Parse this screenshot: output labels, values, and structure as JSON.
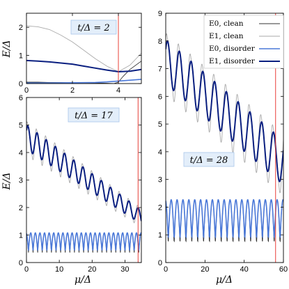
{
  "chart_data": [
    {
      "panel": "top-left",
      "type": "line",
      "annotation": "t/Δ = 2",
      "ylabel": "E/Δ",
      "xlim": [
        0,
        5
      ],
      "ylim": [
        0,
        2.5
      ],
      "xticks": [
        "0",
        "2",
        "4"
      ],
      "yticks": [
        "0",
        "1",
        "2"
      ],
      "vline_x": 4,
      "series": [
        {
          "name": "E0, clean",
          "x": [
            0,
            0.5,
            1,
            1.5,
            2,
            2.5,
            3,
            3.5,
            3.8,
            4,
            4.2,
            4.5,
            5
          ],
          "values": [
            0.05,
            0.05,
            0.04,
            0.04,
            0.03,
            0.03,
            0.02,
            0.01,
            0.0,
            0.05,
            0.25,
            0.5,
            0.8
          ]
        },
        {
          "name": "E1, clean",
          "x": [
            0,
            0.5,
            1,
            1.5,
            2,
            2.5,
            3,
            3.5,
            4,
            4.5,
            5
          ],
          "values": [
            2.05,
            2.02,
            1.92,
            1.72,
            1.48,
            1.18,
            0.88,
            0.62,
            0.42,
            0.65,
            1.08
          ]
        },
        {
          "name": "E0, disorder",
          "x": [
            0,
            1,
            2,
            3,
            3.5,
            4,
            4.5,
            5
          ],
          "values": [
            0.02,
            0.02,
            0.03,
            0.04,
            0.06,
            0.09,
            0.12,
            0.15
          ]
        },
        {
          "name": "E1, disorder",
          "x": [
            0,
            0.5,
            1,
            1.5,
            2,
            2.5,
            3,
            3.5,
            4,
            4.5,
            5
          ],
          "values": [
            0.82,
            0.8,
            0.77,
            0.73,
            0.69,
            0.62,
            0.55,
            0.48,
            0.42,
            0.44,
            0.5
          ]
        }
      ]
    },
    {
      "panel": "bottom-left",
      "type": "line",
      "annotation": "t/Δ = 17",
      "xlabel": "μ/Δ",
      "ylabel": "E/Δ",
      "xlim": [
        0,
        35
      ],
      "ylim": [
        0,
        6
      ],
      "xticks": [
        "0",
        "10",
        "20",
        "30"
      ],
      "yticks": [
        "0",
        "1",
        "2",
        "3",
        "4",
        "5",
        "6"
      ],
      "vline_x": 34,
      "osc": {
        "period_mu": 2.8,
        "e1_base_start": 4.55,
        "e1_base_end": 1.65,
        "e1_amp_start": 0.45,
        "e1_amp_end": 0.25,
        "e0_mid": 0.75,
        "e0_amp": 0.55
      }
    },
    {
      "panel": "right",
      "type": "line",
      "annotation": "t/Δ = 28",
      "xlabel": "μ/Δ",
      "xlim": [
        0,
        60
      ],
      "ylim": [
        0,
        9
      ],
      "xticks": [
        "0",
        "20",
        "40",
        "60"
      ],
      "yticks": [
        "0",
        "1",
        "2",
        "3",
        "4",
        "5",
        "6",
        "7",
        "8",
        "9"
      ],
      "vline_x": 56,
      "osc": {
        "period_mu": 6.0,
        "e1_base_start": 7.25,
        "e1_base_end": 3.6,
        "e1_amp_start": 0.8,
        "e1_amp_end": 0.8,
        "e0_mid": 1.55,
        "e0_amp": 1.2
      },
      "legend": {
        "placement": "top-right",
        "entries": [
          "E0, clean",
          "E1, clean",
          "E0, disorder",
          "E1, disorder"
        ]
      }
    }
  ],
  "colors": {
    "clean_e0": "#333333",
    "clean_e1": "#aaaaaa",
    "disorder_e0": "#4a78d8",
    "disorder_e1": "#0a1f80",
    "vline": "#e8403a",
    "ann_bg": "#e3eefa",
    "ann_border": "#a8c6ea"
  }
}
